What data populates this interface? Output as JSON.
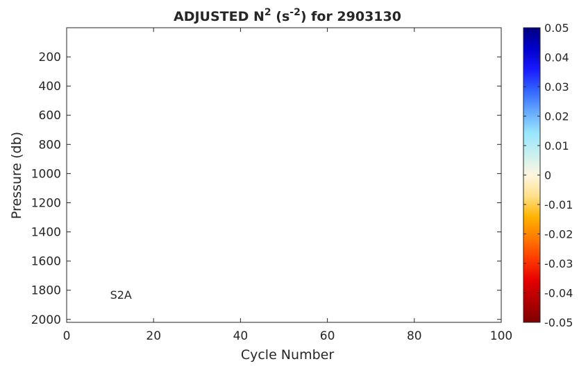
{
  "chart_data": {
    "type": "heatmap",
    "title_main": "ADJUSTED N",
    "title_sup": "2",
    "title_mid": " (s",
    "title_sup2": "-2",
    "title_end": ") for 2903130",
    "xlabel": "Cycle Number",
    "ylabel": "Pressure (db)",
    "xlim": [
      0,
      100
    ],
    "ylim": [
      0,
      2020
    ],
    "y_reversed": true,
    "x_ticks": [
      "0",
      "20",
      "40",
      "60",
      "80",
      "100"
    ],
    "y_ticks": [
      "200",
      "400",
      "600",
      "800",
      "1000",
      "1200",
      "1400",
      "1600",
      "1800",
      "2000"
    ],
    "annotation": {
      "text": "S2A",
      "x": 10,
      "y": 1830
    },
    "data_points": [],
    "colorbar": {
      "clim": [
        -0.05,
        0.05
      ],
      "ticks": [
        "0.05",
        "0.04",
        "0.03",
        "0.02",
        "0.01",
        "0",
        "-0.01",
        "-0.02",
        "-0.03",
        "-0.04",
        "-0.05"
      ],
      "colormap": [
        "#00007f",
        "#0000cc",
        "#1a1aff",
        "#3366ff",
        "#66aaff",
        "#99e6ff",
        "#c8f0f0",
        "#fff6e0",
        "#ffe08a",
        "#ffb300",
        "#ff7a00",
        "#ff3a00",
        "#e60000",
        "#b00000",
        "#800000"
      ]
    },
    "grid": false
  }
}
